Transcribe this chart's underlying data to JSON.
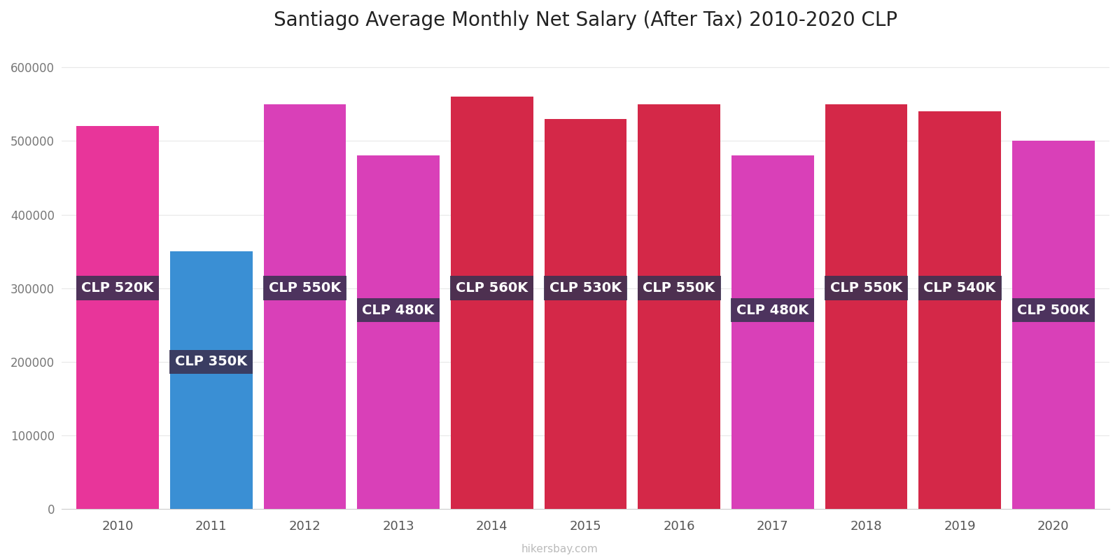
{
  "title": "Santiago Average Monthly Net Salary (After Tax) 2010-2020 CLP",
  "years": [
    2010,
    2011,
    2012,
    2013,
    2014,
    2015,
    2016,
    2017,
    2018,
    2019,
    2020
  ],
  "values": [
    520000,
    350000,
    550000,
    480000,
    560000,
    530000,
    550000,
    480000,
    550000,
    540000,
    500000
  ],
  "labels": [
    "CLP 520K",
    "CLP 350K",
    "CLP 550K",
    "CLP 480K",
    "CLP 560K",
    "CLP 530K",
    "CLP 550K",
    "CLP 480K",
    "CLP 550K",
    "CLP 540K",
    "CLP 500K"
  ],
  "label_y_positions": [
    300000,
    200000,
    300000,
    270000,
    300000,
    300000,
    300000,
    270000,
    300000,
    300000,
    270000
  ],
  "bar_colors": [
    "#e8359a",
    "#3a8fd4",
    "#d940b8",
    "#d940b8",
    "#d42848",
    "#d42848",
    "#d42848",
    "#d940b8",
    "#d42848",
    "#d42848",
    "#d940b8"
  ],
  "ylim": [
    0,
    630000
  ],
  "yticks": [
    0,
    100000,
    200000,
    300000,
    400000,
    500000,
    600000
  ],
  "bar_width": 0.88,
  "xlabel": "",
  "ylabel": "",
  "watermark": "hikersbay.com",
  "label_box_color_dark": "#3a3252",
  "label_box_color_light": "#706888",
  "label_text_color": "#ffffff",
  "background_color": "#ffffff",
  "title_fontsize": 20,
  "label_fontsize": 14,
  "grid_color": "#e8e8e8"
}
